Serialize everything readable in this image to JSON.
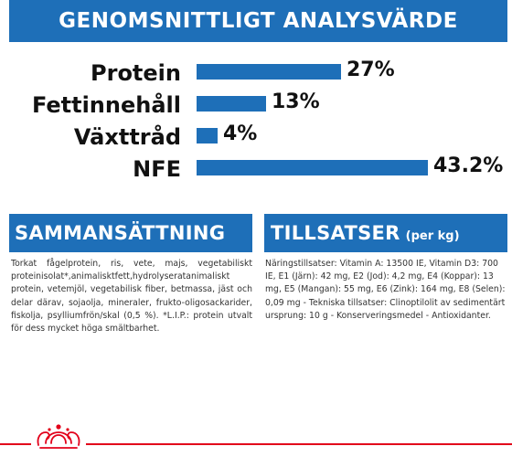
{
  "header": {
    "title": "GENOMSNITTLIGT ANALYSVÄRDE"
  },
  "analysis": [
    {
      "label": "Protein",
      "value": "27%",
      "percent": 27
    },
    {
      "label": "Fettinnehåll",
      "value": "13%",
      "percent": 13
    },
    {
      "label": "Växttråd",
      "value": "4%",
      "percent": 4
    },
    {
      "label": "NFE",
      "value": "43.2%",
      "percent": 43.2
    }
  ],
  "composition": {
    "title": "SAMMANSÄTTNING",
    "text": "Torkat fågelprotein, ris, vete, majs, vegetabiliskt proteinisolat*,animalisktfett,hydrolyseratanimaliskt protein, vetemjöl, vegetabilisk fiber, betmassa, jäst och delar därav, sojaolja, mineraler, frukto-oligosackarider, fiskolja, psylliumfrön/skal (0,5 %). *L.I.P.: protein utvalt för dess mycket höga smältbarhet."
  },
  "additives": {
    "title": "TILLSATSER",
    "unit": "(per kg)",
    "text": "Näringstillsatser: Vitamin A: 13500 IE, Vitamin D3: 700 IE, E1 (Järn): 42 mg, E2 (Jod): 4,2 mg, E4 (Koppar): 13 mg, E5 (Mangan): 55 mg, E6 (Zink): 164 mg, E8 (Selen): 0,09 mg - Tekniska tillsatser: Clinoptilolit av sedimentärt ursprung: 10 g - Konserveringsmedel - Antioxidanter."
  },
  "colors": {
    "brand_blue": "#1e6fb8",
    "brand_red": "#e2001a"
  },
  "logo": {
    "icon": "royal-canin-crown-icon"
  }
}
